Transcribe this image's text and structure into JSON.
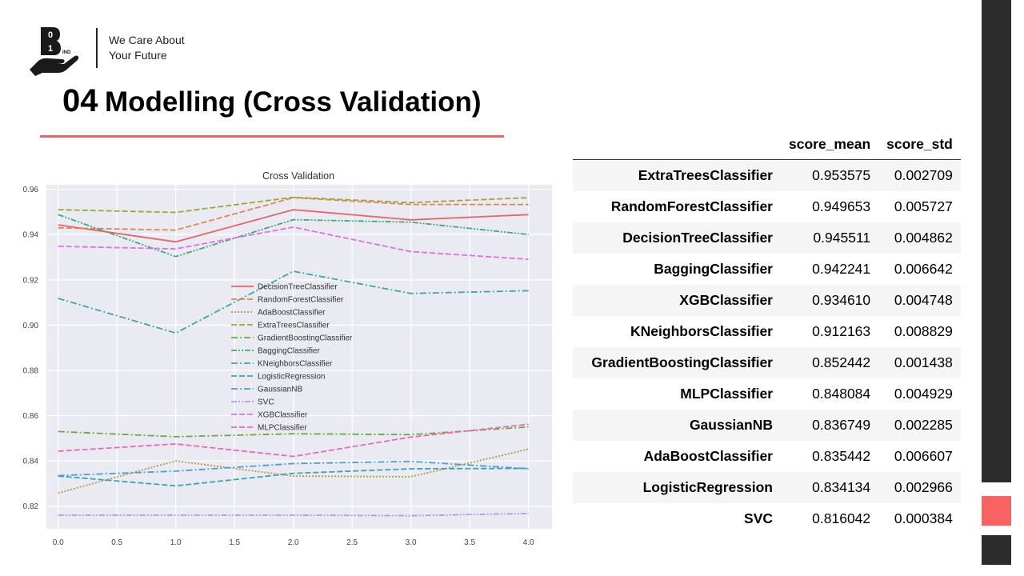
{
  "brand": {
    "logo_digits": [
      "0",
      "1"
    ],
    "logo_suffix": "IND",
    "tagline_line1": "We Care About",
    "tagline_line2": "Your Future"
  },
  "slide": {
    "number": "04",
    "title": "Modelling (Cross Validation)"
  },
  "colors": {
    "accent_red": "#f96262",
    "side_dark": "#2c2c2c",
    "plot_bg": "#eaeaf2"
  },
  "chart_data": {
    "type": "line",
    "title": "Cross Validation",
    "xlabel": "",
    "ylabel": "",
    "xlim": [
      -0.1,
      4.2
    ],
    "ylim": [
      0.81,
      0.962
    ],
    "grid": true,
    "legend_placement": "center",
    "x": [
      0,
      1,
      2,
      3,
      4
    ],
    "x_ticks": [
      "0.0",
      "0.5",
      "1.0",
      "1.5",
      "2.0",
      "2.5",
      "3.0",
      "3.5",
      "4.0"
    ],
    "y_ticks": [
      "0.82",
      "0.84",
      "0.86",
      "0.88",
      "0.90",
      "0.92",
      "0.94",
      "0.96"
    ],
    "series": [
      {
        "name": "DecisionTreeClassifier",
        "color": "#e8636b",
        "dash": "solid",
        "values": [
          0.9443,
          0.9368,
          0.951,
          0.9465,
          0.9488
        ]
      },
      {
        "name": "RandomForestClassifier",
        "color": "#e0884c",
        "dash": "dashed",
        "values": [
          0.943,
          0.942,
          0.9563,
          0.9533,
          0.9533
        ]
      },
      {
        "name": "AdaBoostClassifier",
        "color": "#b59a3e",
        "dash": "dotted",
        "values": [
          0.8258,
          0.84,
          0.8333,
          0.833,
          0.8452
        ]
      },
      {
        "name": "ExtraTreesClassifier",
        "color": "#9ea63a",
        "dash": "dashed",
        "values": [
          0.951,
          0.9498,
          0.9565,
          0.9541,
          0.9563
        ]
      },
      {
        "name": "GradientBoostingClassifier",
        "color": "#6aab3c",
        "dash": "dashdot",
        "values": [
          0.853,
          0.8507,
          0.852,
          0.8516,
          0.855
        ]
      },
      {
        "name": "BaggingClassifier",
        "color": "#3eaa7a",
        "dash": "dashdotdot",
        "values": [
          0.9488,
          0.9303,
          0.9466,
          0.9455,
          0.94
        ]
      },
      {
        "name": "KNeighborsClassifier",
        "color": "#3fa79d",
        "dash": "dashdot",
        "values": [
          0.9118,
          0.8965,
          0.9238,
          0.914,
          0.9152
        ]
      },
      {
        "name": "LogisticRegression",
        "color": "#3ba3b6",
        "dash": "dashed",
        "values": [
          0.8333,
          0.829,
          0.8345,
          0.8365,
          0.8367
        ]
      },
      {
        "name": "GaussianNB",
        "color": "#4a9fd8",
        "dash": "dashdot",
        "values": [
          0.8335,
          0.8355,
          0.8388,
          0.8398,
          0.8365
        ]
      },
      {
        "name": "SVC",
        "color": "#a89cf0",
        "dash": "dashdotdot",
        "values": [
          0.816,
          0.816,
          0.816,
          0.8158,
          0.8168
        ]
      },
      {
        "name": "XGBClassifier",
        "color": "#e06ee8",
        "dash": "dashed",
        "values": [
          0.9348,
          0.9337,
          0.9433,
          0.9325,
          0.9291
        ]
      },
      {
        "name": "MLPClassifier",
        "color": "#ea68b8",
        "dash": "dashed",
        "values": [
          0.8443,
          0.8475,
          0.842,
          0.8505,
          0.8562
        ]
      }
    ]
  },
  "table": {
    "columns": [
      "score_mean",
      "score_std"
    ],
    "rows": [
      {
        "name": "ExtraTreesClassifier",
        "mean": "0.953575",
        "std": "0.002709"
      },
      {
        "name": "RandomForestClassifier",
        "mean": "0.949653",
        "std": "0.005727"
      },
      {
        "name": "DecisionTreeClassifier",
        "mean": "0.945511",
        "std": "0.004862"
      },
      {
        "name": "BaggingClassifier",
        "mean": "0.942241",
        "std": "0.006642"
      },
      {
        "name": "XGBClassifier",
        "mean": "0.934610",
        "std": "0.004748"
      },
      {
        "name": "KNeighborsClassifier",
        "mean": "0.912163",
        "std": "0.008829"
      },
      {
        "name": "GradientBoostingClassifier",
        "mean": "0.852442",
        "std": "0.001438"
      },
      {
        "name": "MLPClassifier",
        "mean": "0.848084",
        "std": "0.004929"
      },
      {
        "name": "GaussianNB",
        "mean": "0.836749",
        "std": "0.002285"
      },
      {
        "name": "AdaBoostClassifier",
        "mean": "0.835442",
        "std": "0.006607"
      },
      {
        "name": "LogisticRegression",
        "mean": "0.834134",
        "std": "0.002966"
      },
      {
        "name": "SVC",
        "mean": "0.816042",
        "std": "0.000384"
      }
    ]
  }
}
